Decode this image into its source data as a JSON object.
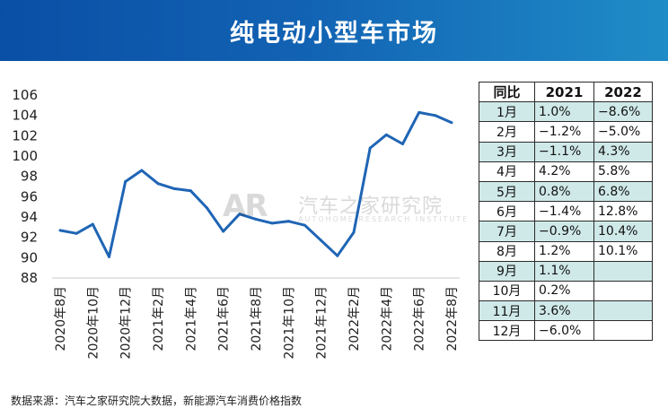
{
  "title": "纯电动小型车市场",
  "source": "数据来源：汽车之家研究院大数据，新能源汽车消费价格指数",
  "watermark": {
    "logo": "AR",
    "name": "汽车之家研究院",
    "sub": "AUTOHOME RESEARCH INSTITUTE"
  },
  "colors": {
    "header_start": "#0a4fa6",
    "header_end": "#1f8cc7",
    "line": "#1f65b5",
    "table_shade": "#cfe9e8"
  },
  "chart_data": {
    "type": "line",
    "title": "纯电动小型车市场",
    "xlabel": "",
    "ylabel": "",
    "ylim": [
      88,
      106
    ],
    "yticks": [
      88,
      90,
      92,
      94,
      96,
      98,
      100,
      102,
      104,
      106
    ],
    "grid": false,
    "categories": [
      "2020年8月",
      "2020年9月",
      "2020年10月",
      "2020年11月",
      "2020年12月",
      "2021年1月",
      "2021年2月",
      "2021年3月",
      "2021年4月",
      "2021年5月",
      "2021年6月",
      "2021年7月",
      "2021年8月",
      "2021年9月",
      "2021年10月",
      "2021年11月",
      "2021年12月",
      "2022年1月",
      "2022年2月",
      "2022年3月",
      "2022年4月",
      "2022年5月",
      "2022年6月",
      "2022年7月",
      "2022年8月"
    ],
    "tick_labels": [
      "2020年8月",
      "2020年10月",
      "2020年12月",
      "2021年2月",
      "2021年4月",
      "2021年6月",
      "2021年8月",
      "2021年10月",
      "2021年12月",
      "2022年2月",
      "2022年4月",
      "2022年6月",
      "2022年8月"
    ],
    "series": [
      {
        "name": "纯电动小型车市场",
        "values": [
          92.6,
          92.3,
          93.2,
          90.0,
          97.4,
          98.5,
          97.2,
          96.7,
          96.5,
          94.8,
          92.5,
          94.2,
          93.7,
          93.3,
          93.5,
          93.1,
          91.6,
          90.1,
          92.4,
          100.7,
          102.0,
          101.1,
          104.2,
          103.9,
          103.2
        ]
      }
    ]
  },
  "table": {
    "headers": [
      "同比",
      "2021",
      "2022"
    ],
    "rows": [
      [
        "1月",
        "1.0%",
        "−8.6%"
      ],
      [
        "2月",
        "−1.2%",
        "−5.0%"
      ],
      [
        "3月",
        "−1.1%",
        "4.3%"
      ],
      [
        "4月",
        "4.2%",
        "5.8%"
      ],
      [
        "5月",
        "0.8%",
        "6.8%"
      ],
      [
        "6月",
        "−1.4%",
        "12.8%"
      ],
      [
        "7月",
        "−0.9%",
        "10.4%"
      ],
      [
        "8月",
        "1.2%",
        "10.1%"
      ],
      [
        "9月",
        "1.1%",
        ""
      ],
      [
        "10月",
        "0.2%",
        ""
      ],
      [
        "11月",
        "3.6%",
        ""
      ],
      [
        "12月",
        "−6.0%",
        ""
      ]
    ]
  }
}
